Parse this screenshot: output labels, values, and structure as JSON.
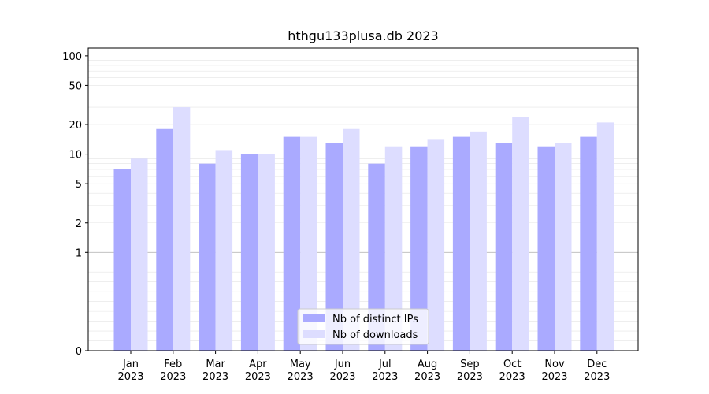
{
  "chart_data": {
    "type": "bar",
    "title": "hthgu133plusa.db 2023",
    "xlabel": "",
    "ylabel": "",
    "y_scale": "symlog",
    "ylim": [
      0,
      120
    ],
    "grid": "horizontal",
    "legend_placement": "bottom-center",
    "categories": [
      [
        "Jan",
        "2023"
      ],
      [
        "Feb",
        "2023"
      ],
      [
        "Mar",
        "2023"
      ],
      [
        "Apr",
        "2023"
      ],
      [
        "May",
        "2023"
      ],
      [
        "Jun",
        "2023"
      ],
      [
        "Jul",
        "2023"
      ],
      [
        "Aug",
        "2023"
      ],
      [
        "Sep",
        "2023"
      ],
      [
        "Oct",
        "2023"
      ],
      [
        "Nov",
        "2023"
      ],
      [
        "Dec",
        "2023"
      ]
    ],
    "y_ticks": [
      0,
      1,
      2,
      5,
      10,
      20,
      50,
      100
    ],
    "series": [
      {
        "name": "Nb of distinct IPs",
        "color": "#aaaaff",
        "values": [
          7,
          18,
          8,
          10,
          15,
          13,
          8,
          12,
          15,
          13,
          12,
          15
        ]
      },
      {
        "name": "Nb of downloads",
        "color": "#ddddff",
        "values": [
          9,
          30,
          11,
          10,
          15,
          18,
          12,
          14,
          17,
          24,
          13,
          21
        ]
      }
    ]
  }
}
